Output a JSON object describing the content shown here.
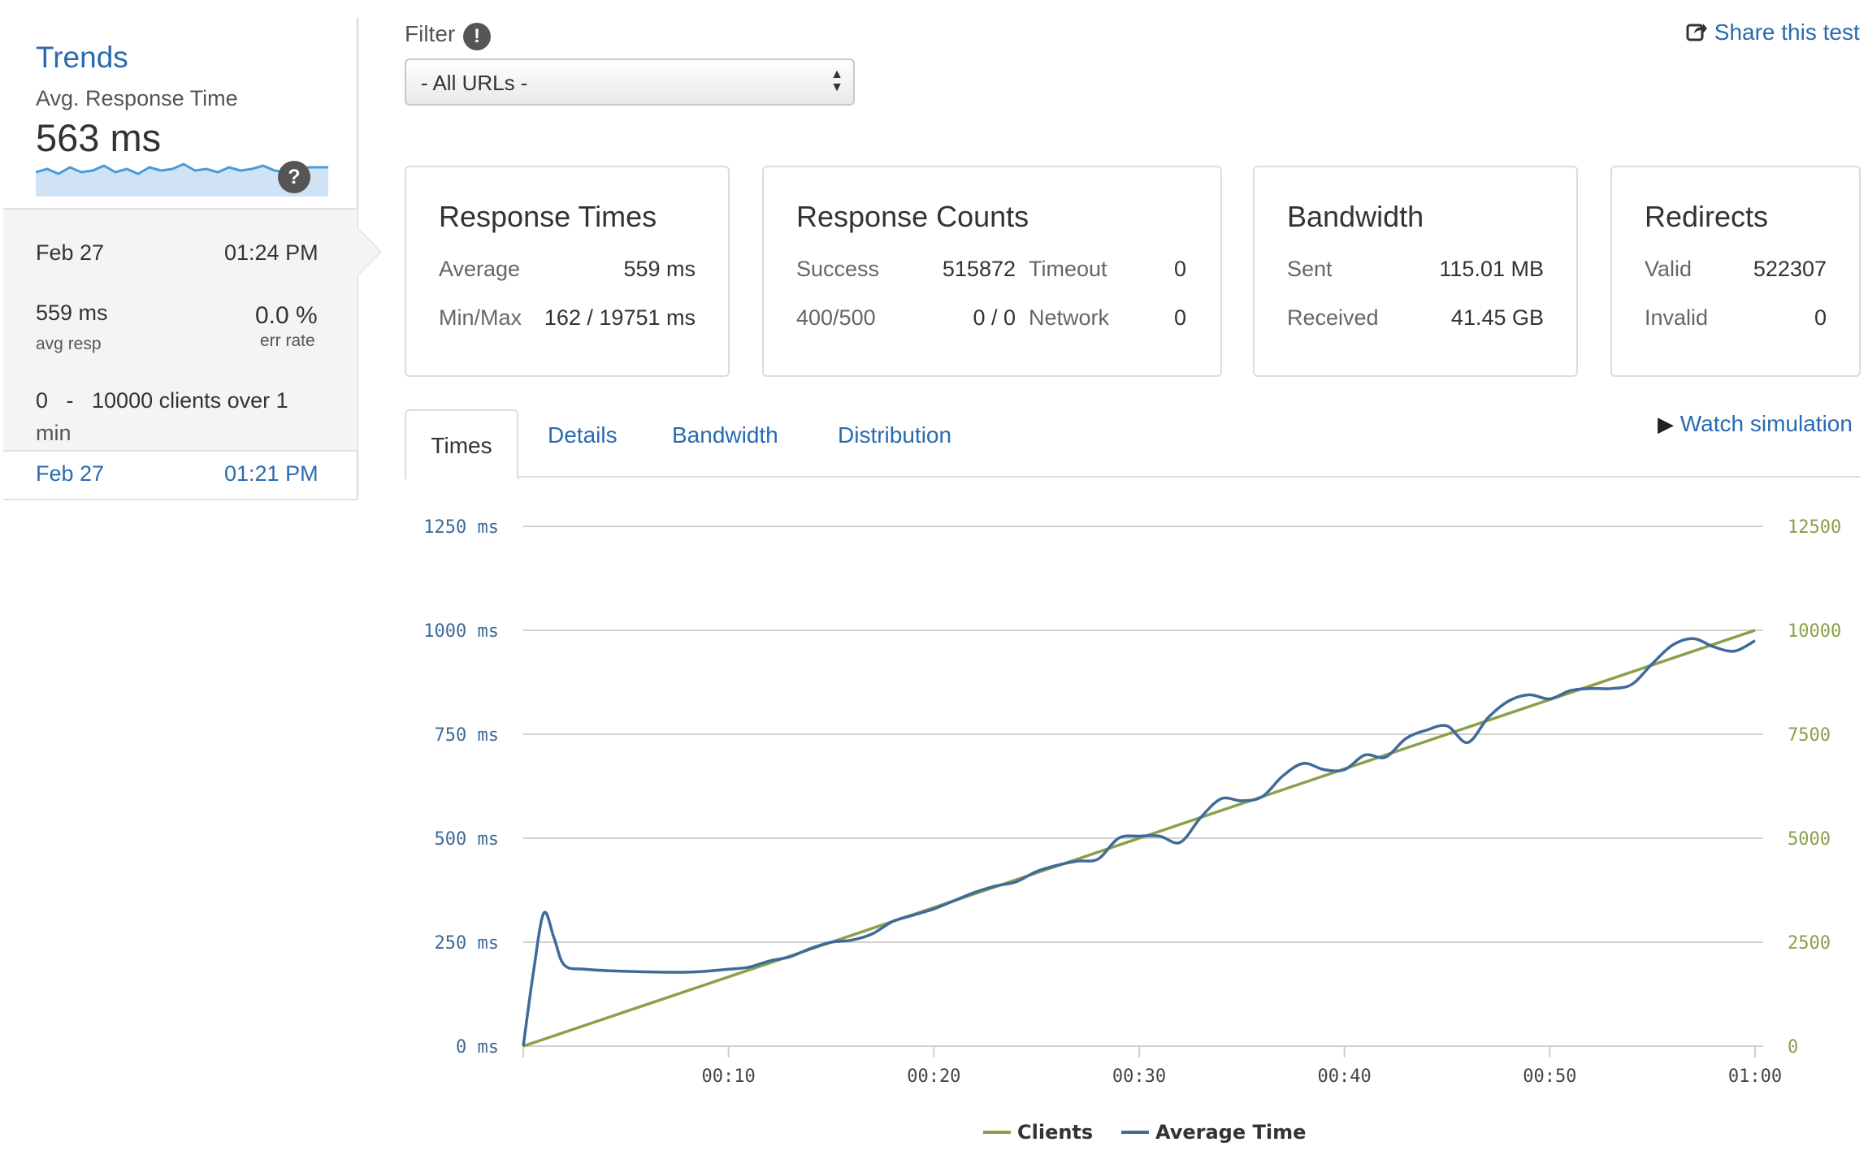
{
  "sidebar": {
    "title": "Trends",
    "metric_label": "Avg. Response Time",
    "metric_value": "563 ms",
    "help": "?",
    "active_run": {
      "date": "Feb 27",
      "time": "01:24 PM",
      "avg_resp_value": "559 ms",
      "avg_resp_label": "avg resp",
      "err_rate_value": "0.0 %",
      "err_rate_label": "err rate",
      "clients_line1": "0   -   10000 clients over 1",
      "clients_line2": "min"
    },
    "other_run": {
      "date": "Feb 27",
      "time": "01:21 PM"
    }
  },
  "filter": {
    "label": "Filter",
    "badge": "!",
    "selected": "- All URLs -"
  },
  "share_label": "Share this test",
  "cards": {
    "response_times": {
      "title": "Response Times",
      "avg_label": "Average",
      "avg_value": "559 ms",
      "minmax_label": "Min/Max",
      "minmax_value": "162 / 19751 ms"
    },
    "response_counts": {
      "title": "Response Counts",
      "success_label": "Success",
      "success_value": "515872",
      "timeout_label": "Timeout",
      "timeout_value": "0",
      "err_label": "400/500",
      "err_value": "0 / 0",
      "network_label": "Network",
      "network_value": "0"
    },
    "bandwidth": {
      "title": "Bandwidth",
      "sent_label": "Sent",
      "sent_value": "115.01 MB",
      "received_label": "Received",
      "received_value": "41.45 GB"
    },
    "redirects": {
      "title": "Redirects",
      "valid_label": "Valid",
      "valid_value": "522307",
      "invalid_label": "Invalid",
      "invalid_value": "0"
    }
  },
  "tabs": [
    "Times",
    "Details",
    "Bandwidth",
    "Distribution"
  ],
  "watch_label": "Watch simulation",
  "colors": {
    "clients": "#8aa04a",
    "avg_time": "#3f6a9a",
    "link": "#2a6ab0"
  },
  "chart_data": {
    "type": "line",
    "x_ticks": [
      "00:10",
      "00:20",
      "00:30",
      "00:40",
      "00:50",
      "01:00"
    ],
    "x_tick_seconds": [
      10,
      20,
      30,
      40,
      50,
      60
    ],
    "xlim": [
      0,
      60
    ],
    "y_left": {
      "ticks": [
        "0 ms",
        "250 ms",
        "500 ms",
        "750 ms",
        "1000 ms",
        "1250 ms"
      ],
      "lim": [
        0,
        1250
      ]
    },
    "y_right": {
      "ticks": [
        "0",
        "2500",
        "5000",
        "7500",
        "10000",
        "12500"
      ],
      "lim": [
        0,
        12500
      ]
    },
    "legend_position": "bottom-center",
    "grid": true,
    "series": [
      {
        "name": "Clients",
        "axis": "right",
        "points": [
          [
            0,
            0
          ],
          [
            60,
            10000
          ]
        ]
      },
      {
        "name": "Average Time",
        "axis": "left",
        "points": [
          [
            0,
            0
          ],
          [
            0.5,
            180
          ],
          [
            1,
            320
          ],
          [
            1.5,
            260
          ],
          [
            2,
            195
          ],
          [
            3,
            185
          ],
          [
            5,
            180
          ],
          [
            8,
            178
          ],
          [
            10,
            185
          ],
          [
            11,
            190
          ],
          [
            12,
            205
          ],
          [
            13,
            215
          ],
          [
            14,
            235
          ],
          [
            15,
            250
          ],
          [
            16,
            255
          ],
          [
            17,
            270
          ],
          [
            18,
            300
          ],
          [
            19,
            315
          ],
          [
            20,
            330
          ],
          [
            21,
            350
          ],
          [
            22,
            370
          ],
          [
            23,
            385
          ],
          [
            24,
            395
          ],
          [
            25,
            420
          ],
          [
            26,
            435
          ],
          [
            27,
            445
          ],
          [
            28,
            450
          ],
          [
            29,
            500
          ],
          [
            30,
            505
          ],
          [
            31,
            505
          ],
          [
            32,
            490
          ],
          [
            33,
            550
          ],
          [
            34,
            595
          ],
          [
            35,
            590
          ],
          [
            36,
            600
          ],
          [
            37,
            650
          ],
          [
            38,
            680
          ],
          [
            39,
            665
          ],
          [
            40,
            665
          ],
          [
            41,
            700
          ],
          [
            42,
            695
          ],
          [
            43,
            740
          ],
          [
            44,
            760
          ],
          [
            45,
            770
          ],
          [
            46,
            730
          ],
          [
            47,
            790
          ],
          [
            48,
            830
          ],
          [
            49,
            845
          ],
          [
            50,
            835
          ],
          [
            51,
            855
          ],
          [
            52,
            860
          ],
          [
            53,
            860
          ],
          [
            54,
            870
          ],
          [
            55,
            920
          ],
          [
            56,
            965
          ],
          [
            57,
            980
          ],
          [
            58,
            960
          ],
          [
            59,
            950
          ],
          [
            60,
            975
          ]
        ]
      }
    ],
    "legend": [
      "Clients",
      "Average Time"
    ]
  }
}
